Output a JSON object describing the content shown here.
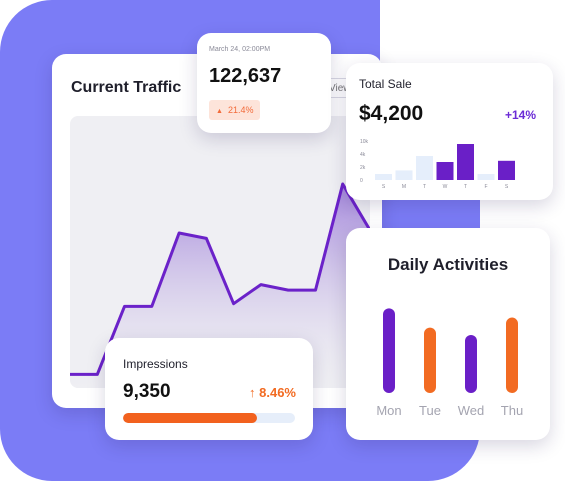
{
  "current_traffic": {
    "title": "Current Traffic",
    "view_label": "View",
    "colors": {
      "line": "#6b22c9",
      "fill_top": "#9a7ad8",
      "fill_bottom": "#efeff3"
    },
    "series": [
      5,
      5,
      30,
      30,
      57,
      55,
      31,
      38,
      36,
      36,
      75,
      58
    ]
  },
  "traffic_stat": {
    "date": "March 24, 02:00PM",
    "value": "122,637",
    "change": "21.4%",
    "change_icon": "triangle-up-icon"
  },
  "total_sale": {
    "title": "Total Sale",
    "value": "$4,200",
    "change": "+14%",
    "chart_data": {
      "type": "bar",
      "categories": [
        "S",
        "M",
        "T",
        "W",
        "T",
        "F",
        "S"
      ],
      "y_ticks": [
        "10k",
        "4k",
        "2k",
        "0"
      ],
      "values": [
        1.0,
        1.6,
        4.0,
        3.0,
        6.0,
        1.0,
        3.2
      ],
      "highlighted": [
        false,
        false,
        false,
        true,
        true,
        false,
        true
      ],
      "colors": {
        "highlight": "#6a1fc7",
        "normal": "#e5eefb"
      }
    }
  },
  "daily_activities": {
    "title": "Daily Activities",
    "chart_data": {
      "type": "bar",
      "categories": [
        "Mon",
        "Tue",
        "Wed",
        "Thu"
      ],
      "values": [
        92,
        71,
        63,
        82
      ],
      "colors": [
        "#6a1fc7",
        "#f26b22",
        "#6a1fc7",
        "#f26b22"
      ]
    }
  },
  "impressions": {
    "title": "Impressions",
    "value": "9,350",
    "change": "8.46%",
    "change_icon": "arrow-up-icon",
    "progress": 0.78
  }
}
